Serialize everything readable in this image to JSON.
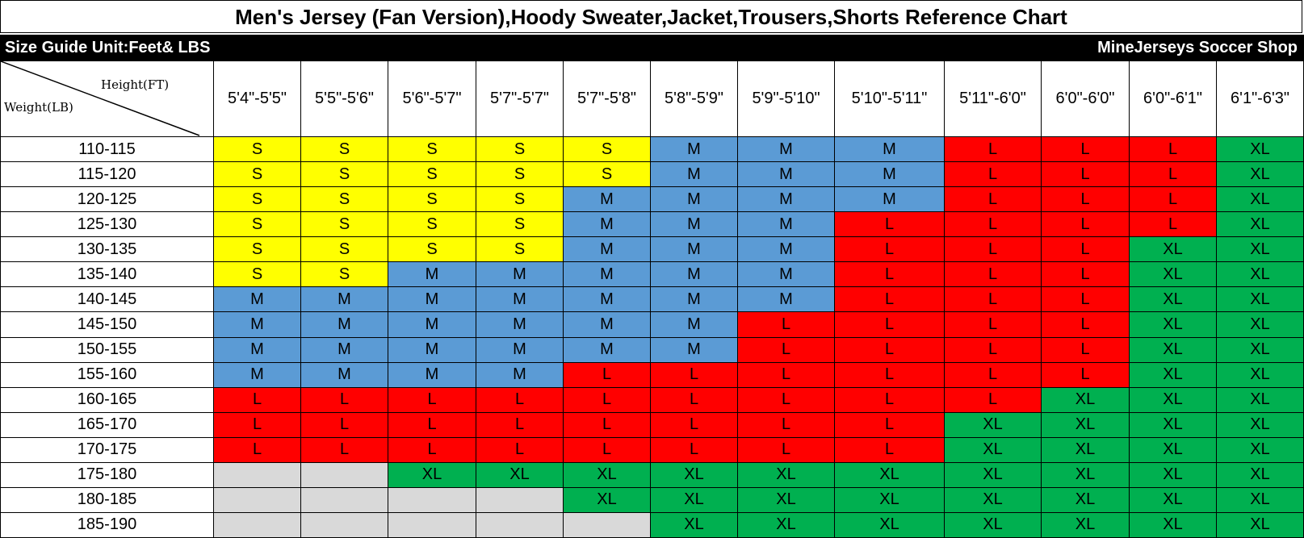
{
  "title": "Men's Jersey (Fan Version),Hoody Sweater,Jacket,Trousers,Shorts Reference Chart",
  "band": {
    "left": "Size Guide Unit:Feet& LBS",
    "right": "MineJerseys Soccer Shop"
  },
  "corner": {
    "height_label": "Height(FT)",
    "weight_label": "Weight(LB)"
  },
  "colors": {
    "S": "#FFFF00",
    "M": "#5B9BD5",
    "L": "#FF0000",
    "XL": "#00B050",
    "blank": "#D9D9D9"
  },
  "heights": [
    "5'4\"-5'5\"",
    "5'5\"-5'6\"",
    "5'6\"-5'7\"",
    "5'7\"-5'7\"",
    "5'7\"-5'8\"",
    "5'8\"-5'9\"",
    "5'9\"-5'10\"",
    "5'10\"-5'11\"",
    "5'11\"-6'0\"",
    "6'0\"-6'0\"",
    "6'0\"-6'1\"",
    "6'1\"-6'3\""
  ],
  "rows": [
    {
      "weight": "110-115",
      "sizes": [
        "S",
        "S",
        "S",
        "S",
        "S",
        "M",
        "M",
        "M",
        "L",
        "L",
        "L",
        "XL"
      ]
    },
    {
      "weight": "115-120",
      "sizes": [
        "S",
        "S",
        "S",
        "S",
        "S",
        "M",
        "M",
        "M",
        "L",
        "L",
        "L",
        "XL"
      ]
    },
    {
      "weight": "120-125",
      "sizes": [
        "S",
        "S",
        "S",
        "S",
        "M",
        "M",
        "M",
        "M",
        "L",
        "L",
        "L",
        "XL"
      ]
    },
    {
      "weight": "125-130",
      "sizes": [
        "S",
        "S",
        "S",
        "S",
        "M",
        "M",
        "M",
        "L",
        "L",
        "L",
        "L",
        "XL"
      ]
    },
    {
      "weight": "130-135",
      "sizes": [
        "S",
        "S",
        "S",
        "S",
        "M",
        "M",
        "M",
        "L",
        "L",
        "L",
        "XL",
        "XL"
      ]
    },
    {
      "weight": "135-140",
      "sizes": [
        "S",
        "S",
        "M",
        "M",
        "M",
        "M",
        "M",
        "L",
        "L",
        "L",
        "XL",
        "XL"
      ]
    },
    {
      "weight": "140-145",
      "sizes": [
        "M",
        "M",
        "M",
        "M",
        "M",
        "M",
        "M",
        "L",
        "L",
        "L",
        "XL",
        "XL"
      ]
    },
    {
      "weight": "145-150",
      "sizes": [
        "M",
        "M",
        "M",
        "M",
        "M",
        "M",
        "L",
        "L",
        "L",
        "L",
        "XL",
        "XL"
      ]
    },
    {
      "weight": "150-155",
      "sizes": [
        "M",
        "M",
        "M",
        "M",
        "M",
        "M",
        "L",
        "L",
        "L",
        "L",
        "XL",
        "XL"
      ]
    },
    {
      "weight": "155-160",
      "sizes": [
        "M",
        "M",
        "M",
        "M",
        "L",
        "L",
        "L",
        "L",
        "L",
        "L",
        "XL",
        "XL"
      ]
    },
    {
      "weight": "160-165",
      "sizes": [
        "L",
        "L",
        "L",
        "L",
        "L",
        "L",
        "L",
        "L",
        "L",
        "XL",
        "XL",
        "XL"
      ]
    },
    {
      "weight": "165-170",
      "sizes": [
        "L",
        "L",
        "L",
        "L",
        "L",
        "L",
        "L",
        "L",
        "XL",
        "XL",
        "XL",
        "XL"
      ]
    },
    {
      "weight": "170-175",
      "sizes": [
        "L",
        "L",
        "L",
        "L",
        "L",
        "L",
        "L",
        "L",
        "XL",
        "XL",
        "XL",
        "XL"
      ]
    },
    {
      "weight": "175-180",
      "sizes": [
        "",
        "",
        "XL",
        "XL",
        "XL",
        "XL",
        "XL",
        "XL",
        "XL",
        "XL",
        "XL",
        "XL"
      ]
    },
    {
      "weight": "180-185",
      "sizes": [
        "",
        "",
        "",
        "",
        "XL",
        "XL",
        "XL",
        "XL",
        "XL",
        "XL",
        "XL",
        "XL"
      ]
    },
    {
      "weight": "185-190",
      "sizes": [
        "",
        "",
        "",
        "",
        "",
        "XL",
        "XL",
        "XL",
        "XL",
        "XL",
        "XL",
        "XL"
      ]
    }
  ]
}
